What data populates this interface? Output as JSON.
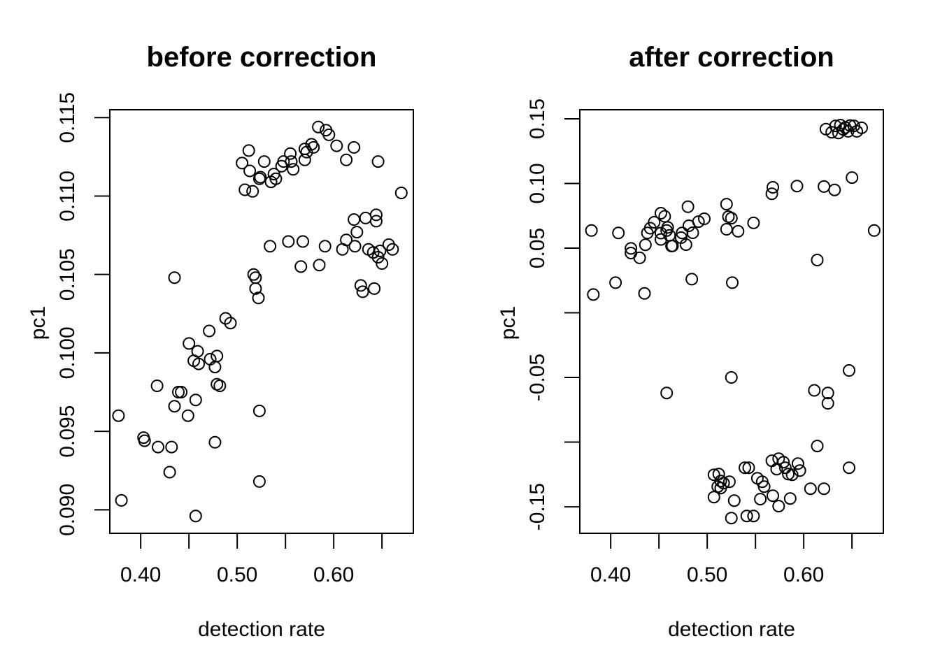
{
  "figure": {
    "background": "#ffffff",
    "point_color": "#000000",
    "point_shape": "open-circle"
  },
  "chart_data": [
    {
      "type": "scatter",
      "title": "before correction",
      "xlabel": "detection rate",
      "ylabel": "pc1",
      "grid": false,
      "legend": null,
      "xlim": [
        0.368,
        0.6825
      ],
      "ylim": [
        0.0885,
        0.1155
      ],
      "xticks": {
        "values": [
          0.4,
          0.45,
          0.5,
          0.55,
          0.6,
          0.65
        ],
        "labels": [
          "0.40",
          "",
          "0.50",
          "",
          "0.60",
          ""
        ]
      },
      "yticks": {
        "values": [
          0.09,
          0.095,
          0.1,
          0.105,
          0.11,
          0.115
        ],
        "labels": [
          "0.090",
          "0.095",
          "0.100",
          "0.105",
          "0.110",
          "0.115"
        ]
      },
      "points": [
        [
          0.584,
          0.1144
        ],
        [
          0.592,
          0.1142
        ],
        [
          0.595,
          0.1139
        ],
        [
          0.512,
          0.1129
        ],
        [
          0.505,
          0.1121
        ],
        [
          0.528,
          0.1122
        ],
        [
          0.513,
          0.1116
        ],
        [
          0.524,
          0.1112
        ],
        [
          0.535,
          0.1109
        ],
        [
          0.54,
          0.1111
        ],
        [
          0.538,
          0.1114
        ],
        [
          0.546,
          0.1119
        ],
        [
          0.548,
          0.1122
        ],
        [
          0.555,
          0.1127
        ],
        [
          0.556,
          0.1122
        ],
        [
          0.558,
          0.1117
        ],
        [
          0.57,
          0.113
        ],
        [
          0.572,
          0.1128
        ],
        [
          0.577,
          0.1133
        ],
        [
          0.579,
          0.1131
        ],
        [
          0.57,
          0.1123
        ],
        [
          0.603,
          0.1132
        ],
        [
          0.621,
          0.1131
        ],
        [
          0.613,
          0.1123
        ],
        [
          0.646,
          0.1122
        ],
        [
          0.67,
          0.1102
        ],
        [
          0.508,
          0.1104
        ],
        [
          0.516,
          0.1103
        ],
        [
          0.523,
          0.1111
        ],
        [
          0.621,
          0.1085
        ],
        [
          0.633,
          0.1086
        ],
        [
          0.644,
          0.1088
        ],
        [
          0.644,
          0.1084
        ],
        [
          0.624,
          0.1077
        ],
        [
          0.613,
          0.1072
        ],
        [
          0.622,
          0.1068
        ],
        [
          0.609,
          0.1066
        ],
        [
          0.636,
          0.1066
        ],
        [
          0.641,
          0.1064
        ],
        [
          0.648,
          0.1065
        ],
        [
          0.65,
          0.1057
        ],
        [
          0.657,
          0.1069
        ],
        [
          0.661,
          0.1066
        ],
        [
          0.646,
          0.1061
        ],
        [
          0.568,
          0.1071
        ],
        [
          0.591,
          0.1068
        ],
        [
          0.566,
          0.1055
        ],
        [
          0.585,
          0.1056
        ],
        [
          0.628,
          0.1043
        ],
        [
          0.63,
          0.1039
        ],
        [
          0.642,
          0.1041
        ],
        [
          0.534,
          0.1068
        ],
        [
          0.553,
          0.1071
        ],
        [
          0.488,
          0.1022
        ],
        [
          0.493,
          0.1019
        ],
        [
          0.471,
          0.1014
        ],
        [
          0.45,
          0.1006
        ],
        [
          0.459,
          0.1001
        ],
        [
          0.455,
          0.0995
        ],
        [
          0.46,
          0.0993
        ],
        [
          0.472,
          0.0996
        ],
        [
          0.479,
          0.0998
        ],
        [
          0.477,
          0.0991
        ],
        [
          0.517,
          0.105
        ],
        [
          0.519,
          0.1048
        ],
        [
          0.519,
          0.1041
        ],
        [
          0.522,
          0.1035
        ],
        [
          0.435,
          0.1048
        ],
        [
          0.417,
          0.0979
        ],
        [
          0.439,
          0.0975
        ],
        [
          0.442,
          0.0975
        ],
        [
          0.457,
          0.097
        ],
        [
          0.435,
          0.0966
        ],
        [
          0.449,
          0.096
        ],
        [
          0.479,
          0.098
        ],
        [
          0.482,
          0.0979
        ],
        [
          0.377,
          0.096
        ],
        [
          0.523,
          0.0963
        ],
        [
          0.403,
          0.0946
        ],
        [
          0.404,
          0.0944
        ],
        [
          0.418,
          0.094
        ],
        [
          0.432,
          0.094
        ],
        [
          0.477,
          0.0943
        ],
        [
          0.43,
          0.0924
        ],
        [
          0.523,
          0.0918
        ],
        [
          0.38,
          0.0906
        ],
        [
          0.457,
          0.0896
        ]
      ]
    },
    {
      "type": "scatter",
      "title": "after correction",
      "xlabel": "detection rate",
      "ylabel": "pc1",
      "grid": false,
      "legend": null,
      "xlim": [
        0.368,
        0.6825
      ],
      "ylim": [
        -0.1705,
        0.157
      ],
      "xticks": {
        "values": [
          0.4,
          0.45,
          0.5,
          0.55,
          0.6,
          0.65
        ],
        "labels": [
          "0.40",
          "",
          "0.50",
          "",
          "0.60",
          ""
        ]
      },
      "yticks": {
        "values": [
          -0.15,
          -0.1,
          -0.05,
          0.0,
          0.05,
          0.1,
          0.15
        ],
        "labels": [
          "-0.15",
          "",
          "-0.05",
          "",
          "0.05",
          "0.10",
          "0.15"
        ]
      },
      "points": [
        [
          0.623,
          0.142
        ],
        [
          0.629,
          0.1396
        ],
        [
          0.633,
          0.1445
        ],
        [
          0.636,
          0.139
        ],
        [
          0.638,
          0.1451
        ],
        [
          0.641,
          0.1418
        ],
        [
          0.643,
          0.1432
        ],
        [
          0.646,
          0.1403
        ],
        [
          0.648,
          0.1448
        ],
        [
          0.652,
          0.1445
        ],
        [
          0.655,
          0.1403
        ],
        [
          0.66,
          0.143
        ],
        [
          0.568,
          0.097
        ],
        [
          0.567,
          0.092
        ],
        [
          0.593,
          0.098
        ],
        [
          0.621,
          0.0976
        ],
        [
          0.632,
          0.095
        ],
        [
          0.65,
          0.1045
        ],
        [
          0.614,
          0.0408
        ],
        [
          0.673,
          0.0636
        ],
        [
          0.52,
          0.084
        ],
        [
          0.48,
          0.082
        ],
        [
          0.522,
          0.0743
        ],
        [
          0.525,
          0.0732
        ],
        [
          0.52,
          0.0646
        ],
        [
          0.532,
          0.063
        ],
        [
          0.548,
          0.0695
        ],
        [
          0.497,
          0.0727
        ],
        [
          0.491,
          0.0705
        ],
        [
          0.481,
          0.0673
        ],
        [
          0.485,
          0.0619
        ],
        [
          0.478,
          0.0527
        ],
        [
          0.463,
          0.0516
        ],
        [
          0.452,
          0.077
        ],
        [
          0.459,
          0.066
        ],
        [
          0.452,
          0.0616
        ],
        [
          0.452,
          0.0567
        ],
        [
          0.38,
          0.0636
        ],
        [
          0.408,
          0.0617
        ],
        [
          0.421,
          0.0498
        ],
        [
          0.421,
          0.0462
        ],
        [
          0.43,
          0.0425
        ],
        [
          0.436,
          0.0526
        ],
        [
          0.438,
          0.0617
        ],
        [
          0.441,
          0.0654
        ],
        [
          0.445,
          0.07
        ],
        [
          0.456,
          0.0746
        ],
        [
          0.458,
          0.0636
        ],
        [
          0.461,
          0.0599
        ],
        [
          0.464,
          0.0517
        ],
        [
          0.473,
          0.0581
        ],
        [
          0.474,
          0.0617
        ],
        [
          0.382,
          0.0141
        ],
        [
          0.405,
          0.0233
        ],
        [
          0.435,
          0.015
        ],
        [
          0.484,
          0.026
        ],
        [
          0.526,
          0.0233
        ],
        [
          0.458,
          -0.062
        ],
        [
          0.525,
          -0.05
        ],
        [
          0.611,
          -0.06
        ],
        [
          0.625,
          -0.062
        ],
        [
          0.625,
          -0.07
        ],
        [
          0.647,
          -0.0446
        ],
        [
          0.614,
          -0.103
        ],
        [
          0.507,
          -0.1252
        ],
        [
          0.512,
          -0.1247
        ],
        [
          0.514,
          -0.1301
        ],
        [
          0.517,
          -0.1317
        ],
        [
          0.523,
          -0.1306
        ],
        [
          0.511,
          -0.1344
        ],
        [
          0.514,
          -0.1355
        ],
        [
          0.507,
          -0.1425
        ],
        [
          0.528,
          -0.1452
        ],
        [
          0.525,
          -0.1587
        ],
        [
          0.539,
          -0.1198
        ],
        [
          0.543,
          -0.1198
        ],
        [
          0.541,
          -0.1571
        ],
        [
          0.548,
          -0.1571
        ],
        [
          0.552,
          -0.1279
        ],
        [
          0.557,
          -0.1306
        ],
        [
          0.559,
          -0.1344
        ],
        [
          0.555,
          -0.1441
        ],
        [
          0.568,
          -0.1414
        ],
        [
          0.574,
          -0.1495
        ],
        [
          0.586,
          -0.1436
        ],
        [
          0.567,
          -0.1144
        ],
        [
          0.574,
          -0.1128
        ],
        [
          0.579,
          -0.1155
        ],
        [
          0.572,
          -0.1209
        ],
        [
          0.581,
          -0.1198
        ],
        [
          0.584,
          -0.1247
        ],
        [
          0.588,
          -0.1252
        ],
        [
          0.594,
          -0.1166
        ],
        [
          0.596,
          -0.122
        ],
        [
          0.607,
          -0.136
        ],
        [
          0.621,
          -0.136
        ],
        [
          0.647,
          -0.1198
        ]
      ]
    }
  ]
}
